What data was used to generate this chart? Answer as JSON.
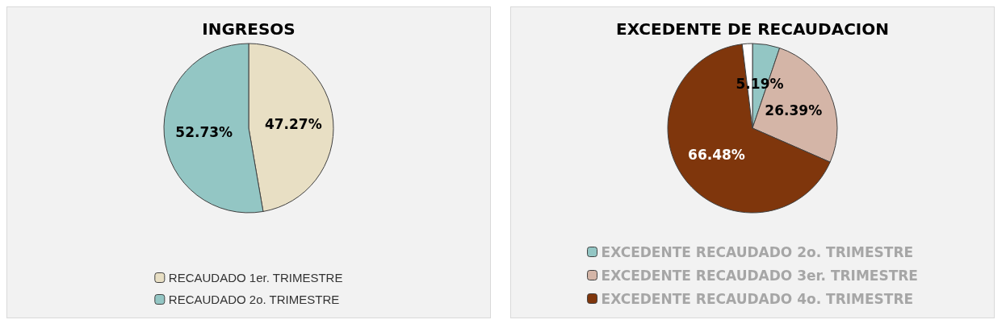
{
  "chart_data": [
    {
      "type": "pie",
      "title": "INGRESOS",
      "categories": [
        "RECAUDADO 1er. TRIMESTRE",
        "RECAUDADO 2o. TRIMESTRE"
      ],
      "values": [
        47.27,
        52.73
      ],
      "colors": [
        "#e8dfc4",
        "#93c6c4"
      ],
      "value_labels": [
        "47.27%",
        "52.73%"
      ],
      "legend": "bottom"
    },
    {
      "type": "pie",
      "title": "EXCEDENTE DE RECAUDACION",
      "categories": [
        "EXCEDENTE RECAUDADO 2o. TRIMESTRE",
        "EXCEDENTE RECAUDADO 3er. TRIMESTRE",
        "EXCEDENTE RECAUDADO 4o. TRIMESTRE",
        null
      ],
      "values": [
        5.19,
        26.39,
        66.48,
        1.94
      ],
      "colors": [
        "#93c6c4",
        "#d4b5a7",
        "#7f360c",
        "#ffffff"
      ],
      "value_labels": [
        "5.19%",
        "26.39%",
        "66.48%",
        null
      ],
      "legend": "bottom"
    }
  ]
}
